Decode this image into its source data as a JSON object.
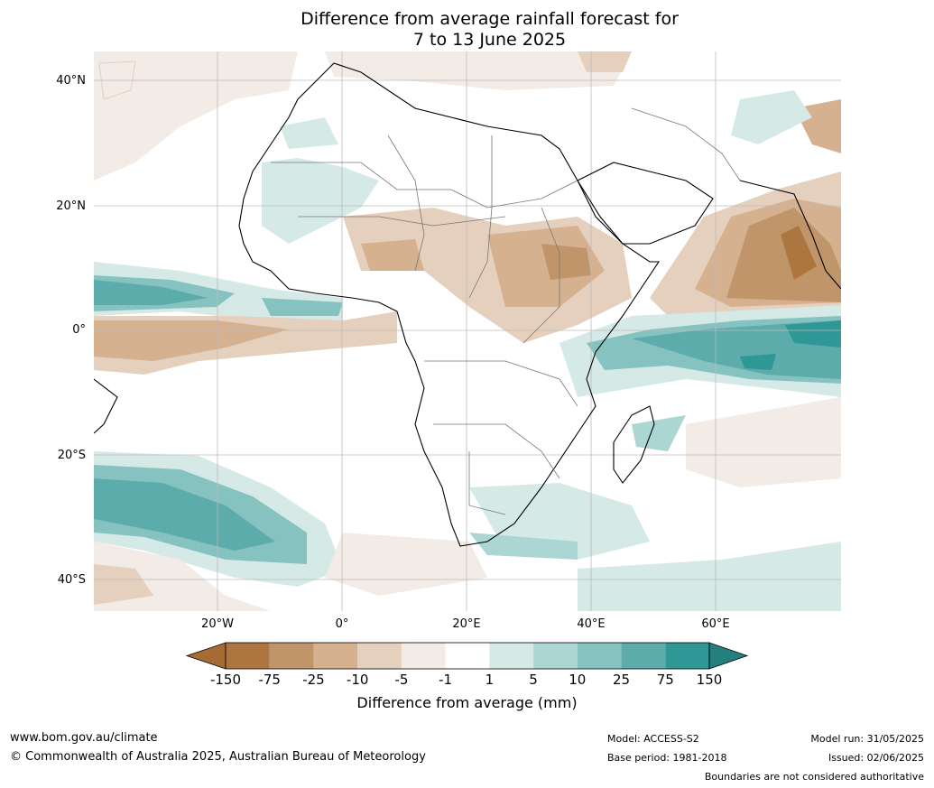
{
  "title_line1": "Difference from average rainfall forecast for",
  "title_line2": "7 to 13 June 2025",
  "map": {
    "lat_labels": [
      "40°N",
      "20°N",
      "0°",
      "20°S",
      "40°S"
    ],
    "lon_labels": [
      "20°W",
      "0°",
      "20°E",
      "40°E",
      "60°E"
    ],
    "region": "Africa and surrounding oceans"
  },
  "colorbar": {
    "labels": [
      "-150",
      "-75",
      "-25",
      "-10",
      "-5",
      "-1",
      "1",
      "5",
      "10",
      "25",
      "75",
      "150"
    ],
    "colors": [
      "#a56d35",
      "#ad7640",
      "#c1956a",
      "#d5b190",
      "#e5cfbd",
      "#f3ebe5",
      "#ffffff",
      "#d5e9e7",
      "#acd6d3",
      "#86c3c0",
      "#5bacab",
      "#2f9796",
      "#257f7e"
    ],
    "title": "Difference from average (mm)"
  },
  "footer": {
    "website": "www.bom.gov.au/climate",
    "copyright": "© Commonwealth of Australia 2025, Australian Bureau of Meteorology",
    "model": "Model: ACCESS-S2",
    "base_period": "Base period: 1981-2018",
    "model_run": "Model run: 31/05/2025",
    "issued": "Issued: 02/06/2025",
    "disclaimer": "Boundaries are not considered authoritative"
  }
}
